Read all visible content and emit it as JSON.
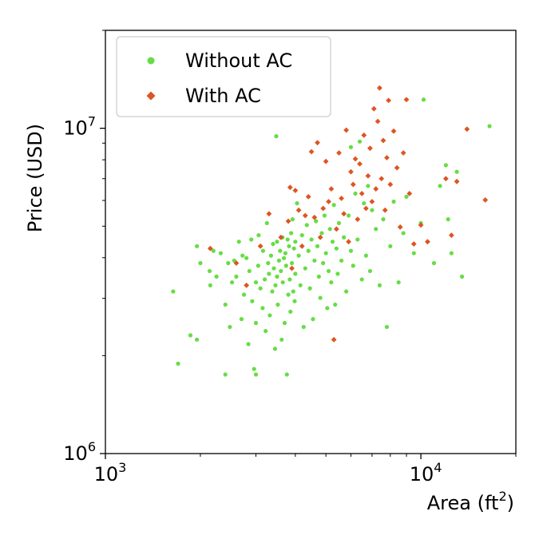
{
  "chart_data": {
    "type": "scatter",
    "xlabel": "Area (ft",
    "xlabel_sup": "2",
    "xlabel_close": ")",
    "ylabel": "Price (USD)",
    "xscale": "log",
    "yscale": "log",
    "xlim": [
      1000,
      20000
    ],
    "ylim": [
      1000000,
      20000000
    ],
    "x_ticks": [
      {
        "value": 1000,
        "base": "10",
        "exp": "3"
      },
      {
        "value": 10000,
        "base": "10",
        "exp": "4"
      }
    ],
    "y_ticks": [
      {
        "value": 1000000,
        "base": "10",
        "exp": "6"
      },
      {
        "value": 10000000,
        "base": "10",
        "exp": "7"
      }
    ],
    "grid": false,
    "legend": {
      "placement": "top-left"
    },
    "series": [
      {
        "name": "Without AC",
        "marker": "circle",
        "color": "#66dd44",
        "points": [
          [
            1640,
            3150000
          ],
          [
            1700,
            1890000
          ],
          [
            1860,
            2310000
          ],
          [
            1950,
            4340000
          ],
          [
            1950,
            2240000
          ],
          [
            2000,
            3850000
          ],
          [
            2140,
            3640000
          ],
          [
            2150,
            3290000
          ],
          [
            2200,
            4200000
          ],
          [
            2250,
            3500000
          ],
          [
            2320,
            4130000
          ],
          [
            2400,
            2870000
          ],
          [
            2400,
            1750000
          ],
          [
            2450,
            3850000
          ],
          [
            2480,
            2450000
          ],
          [
            2520,
            3360000
          ],
          [
            2560,
            3920000
          ],
          [
            2600,
            3500000
          ],
          [
            2650,
            4480000
          ],
          [
            2700,
            2590000
          ],
          [
            2720,
            4060000
          ],
          [
            2750,
            3080000
          ],
          [
            2800,
            3990000
          ],
          [
            2840,
            2170000
          ],
          [
            2860,
            3640000
          ],
          [
            2900,
            4550000
          ],
          [
            2920,
            2940000
          ],
          [
            2960,
            1820000
          ],
          [
            3000,
            3360000
          ],
          [
            3000,
            2520000
          ],
          [
            3000,
            1750000
          ],
          [
            3050,
            3780000
          ],
          [
            3060,
            4690000
          ],
          [
            3100,
            3220000
          ],
          [
            3150,
            2800000
          ],
          [
            3160,
            4200000
          ],
          [
            3200,
            3430000
          ],
          [
            3220,
            2380000
          ],
          [
            3250,
            5110000
          ],
          [
            3280,
            3850000
          ],
          [
            3300,
            3570000
          ],
          [
            3320,
            2660000
          ],
          [
            3350,
            4060000
          ],
          [
            3380,
            3150000
          ],
          [
            3400,
            4410000
          ],
          [
            3420,
            3710000
          ],
          [
            3450,
            2100000
          ],
          [
            3460,
            3290000
          ],
          [
            3480,
            9450000
          ],
          [
            3500,
            4480000
          ],
          [
            3500,
            3500000
          ],
          [
            3520,
            2870000
          ],
          [
            3550,
            3920000
          ],
          [
            3580,
            4200000
          ],
          [
            3600,
            3640000
          ],
          [
            3620,
            2240000
          ],
          [
            3640,
            4620000
          ],
          [
            3650,
            3360000
          ],
          [
            3680,
            3990000
          ],
          [
            3700,
            2520000
          ],
          [
            3720,
            4130000
          ],
          [
            3740,
            3780000
          ],
          [
            3760,
            1750000
          ],
          [
            3780,
            4550000
          ],
          [
            3800,
            3080000
          ],
          [
            3820,
            4340000
          ],
          [
            3840,
            3430000
          ],
          [
            3860,
            2730000
          ],
          [
            3880,
            4760000
          ],
          [
            3900,
            3850000
          ],
          [
            3920,
            5250000
          ],
          [
            3940,
            3150000
          ],
          [
            3960,
            4270000
          ],
          [
            3980,
            2940000
          ],
          [
            4000,
            4480000
          ],
          [
            4000,
            3570000
          ],
          [
            4050,
            5880000
          ],
          [
            4100,
            4060000
          ],
          [
            4150,
            3290000
          ],
          [
            4200,
            4690000
          ],
          [
            4250,
            2450000
          ],
          [
            4300,
            3710000
          ],
          [
            4350,
            5040000
          ],
          [
            4400,
            4200000
          ],
          [
            4450,
            3220000
          ],
          [
            4500,
            4550000
          ],
          [
            4550,
            2590000
          ],
          [
            4600,
            3920000
          ],
          [
            4650,
            5180000
          ],
          [
            4700,
            4340000
          ],
          [
            4750,
            3500000
          ],
          [
            4800,
            3010000
          ],
          [
            4850,
            4760000
          ],
          [
            4900,
            3850000
          ],
          [
            4950,
            5390000
          ],
          [
            5000,
            4130000
          ],
          [
            5050,
            2800000
          ],
          [
            5100,
            3640000
          ],
          [
            5150,
            4900000
          ],
          [
            5200,
            3360000
          ],
          [
            5250,
            4480000
          ],
          [
            5300,
            5810000
          ],
          [
            5350,
            2870000
          ],
          [
            5400,
            4270000
          ],
          [
            5450,
            3570000
          ],
          [
            5500,
            5110000
          ],
          [
            5600,
            3920000
          ],
          [
            5700,
            4620000
          ],
          [
            5800,
            3150000
          ],
          [
            5900,
            5390000
          ],
          [
            6000,
            4200000
          ],
          [
            6000,
            8750000
          ],
          [
            6100,
            3780000
          ],
          [
            6200,
            6300000
          ],
          [
            6300,
            4550000
          ],
          [
            6400,
            9100000
          ],
          [
            6500,
            3430000
          ],
          [
            6600,
            5880000
          ],
          [
            6700,
            4060000
          ],
          [
            6800,
            6650000
          ],
          [
            6900,
            3640000
          ],
          [
            7000,
            5600000
          ],
          [
            7200,
            4900000
          ],
          [
            7400,
            3290000
          ],
          [
            7600,
            5250000
          ],
          [
            7800,
            2450000
          ],
          [
            8000,
            4340000
          ],
          [
            8200,
            5950000
          ],
          [
            8500,
            3360000
          ],
          [
            8800,
            4760000
          ],
          [
            9000,
            6160000
          ],
          [
            9500,
            4130000
          ],
          [
            10000,
            5110000
          ],
          [
            10200,
            12250000
          ],
          [
            10500,
            4480000
          ],
          [
            11000,
            3850000
          ],
          [
            11500,
            6650000
          ],
          [
            12000,
            7700000
          ],
          [
            12200,
            5250000
          ],
          [
            12500,
            4130000
          ],
          [
            13000,
            7350000
          ],
          [
            13500,
            3500000
          ],
          [
            16500,
            10150000
          ]
        ]
      },
      {
        "name": "With AC",
        "marker": "diamond",
        "color": "#dd5522",
        "points": [
          [
            2150,
            4270000
          ],
          [
            2600,
            3850000
          ],
          [
            2800,
            3290000
          ],
          [
            3100,
            4340000
          ],
          [
            3300,
            5460000
          ],
          [
            3600,
            4620000
          ],
          [
            3800,
            5180000
          ],
          [
            3850,
            6580000
          ],
          [
            3900,
            3710000
          ],
          [
            4000,
            6440000
          ],
          [
            4100,
            5600000
          ],
          [
            4200,
            4340000
          ],
          [
            4300,
            5390000
          ],
          [
            4400,
            6160000
          ],
          [
            4500,
            8470000
          ],
          [
            4600,
            5320000
          ],
          [
            4700,
            9030000
          ],
          [
            4800,
            4620000
          ],
          [
            4900,
            5670000
          ],
          [
            5000,
            7910000
          ],
          [
            5100,
            5950000
          ],
          [
            5200,
            6510000
          ],
          [
            5300,
            2240000
          ],
          [
            5400,
            4900000
          ],
          [
            5500,
            8400000
          ],
          [
            5600,
            6090000
          ],
          [
            5700,
            5460000
          ],
          [
            5800,
            9870000
          ],
          [
            5900,
            4480000
          ],
          [
            6000,
            7350000
          ],
          [
            6100,
            6720000
          ],
          [
            6200,
            8050000
          ],
          [
            6300,
            5250000
          ],
          [
            6400,
            7770000
          ],
          [
            6500,
            6300000
          ],
          [
            6600,
            9520000
          ],
          [
            6700,
            5670000
          ],
          [
            6800,
            7140000
          ],
          [
            6900,
            8680000
          ],
          [
            7000,
            5950000
          ],
          [
            7100,
            11480000
          ],
          [
            7200,
            6510000
          ],
          [
            7300,
            10500000
          ],
          [
            7400,
            13300000
          ],
          [
            7500,
            7000000
          ],
          [
            7600,
            9170000
          ],
          [
            7700,
            5600000
          ],
          [
            7800,
            8120000
          ],
          [
            7900,
            12180000
          ],
          [
            8000,
            6720000
          ],
          [
            8200,
            9800000
          ],
          [
            8400,
            7560000
          ],
          [
            8600,
            4970000
          ],
          [
            8800,
            8400000
          ],
          [
            9000,
            12250000
          ],
          [
            9200,
            6300000
          ],
          [
            9500,
            4410000
          ],
          [
            10000,
            5040000
          ],
          [
            10500,
            4480000
          ],
          [
            12000,
            7000000
          ],
          [
            12500,
            4690000
          ],
          [
            13000,
            6860000
          ],
          [
            14000,
            9940000
          ],
          [
            16000,
            6020000
          ]
        ]
      }
    ]
  }
}
